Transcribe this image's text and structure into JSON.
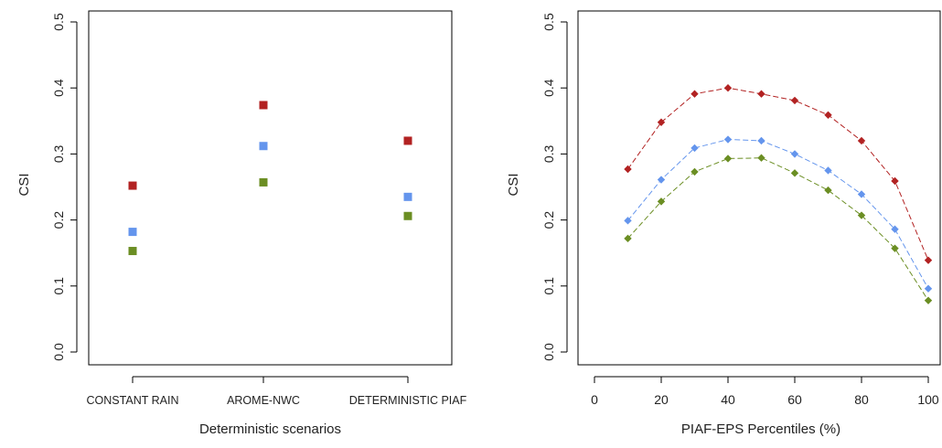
{
  "colors": {
    "red": "#b22222",
    "blue": "#6495ed",
    "green": "#6b8e23"
  },
  "chart_data": [
    {
      "type": "scatter",
      "title": "",
      "xlabel": "Deterministic scenarios",
      "ylabel": "CSI",
      "categories": [
        "CONSTANT RAIN",
        "AROME-NWC",
        "DETERMINISTIC PIAF"
      ],
      "ylim": [
        0.0,
        0.5
      ],
      "yticks": [
        "0.0",
        "0.1",
        "0.2",
        "0.3",
        "0.4",
        "0.5"
      ],
      "marker": "square",
      "grid": false,
      "series": [
        {
          "color": "#b22222",
          "values": [
            0.252,
            0.374,
            0.32
          ]
        },
        {
          "color": "#6495ed",
          "values": [
            0.182,
            0.312,
            0.235
          ]
        },
        {
          "color": "#6b8e23",
          "values": [
            0.153,
            0.257,
            0.206
          ]
        }
      ]
    },
    {
      "type": "line",
      "title": "",
      "xlabel": "PIAF-EPS Percentiles (%)",
      "ylabel": "CSI",
      "x": [
        10,
        20,
        30,
        40,
        50,
        60,
        70,
        80,
        90,
        100
      ],
      "xlim": [
        0,
        100
      ],
      "ylim": [
        0.0,
        0.5
      ],
      "xticks": [
        "0",
        "20",
        "40",
        "60",
        "80",
        "100"
      ],
      "yticks": [
        "0.0",
        "0.1",
        "0.2",
        "0.3",
        "0.4",
        "0.5"
      ],
      "marker": "diamond",
      "line_style": "dashed",
      "grid": false,
      "series": [
        {
          "color": "#b22222",
          "values": [
            0.277,
            0.348,
            0.391,
            0.4,
            0.391,
            0.381,
            0.359,
            0.32,
            0.259,
            0.139
          ]
        },
        {
          "color": "#6495ed",
          "values": [
            0.199,
            0.261,
            0.309,
            0.322,
            0.32,
            0.3,
            0.275,
            0.239,
            0.186,
            0.096
          ]
        },
        {
          "color": "#6b8e23",
          "values": [
            0.172,
            0.228,
            0.273,
            0.293,
            0.294,
            0.271,
            0.245,
            0.207,
            0.157,
            0.078
          ]
        }
      ]
    }
  ]
}
